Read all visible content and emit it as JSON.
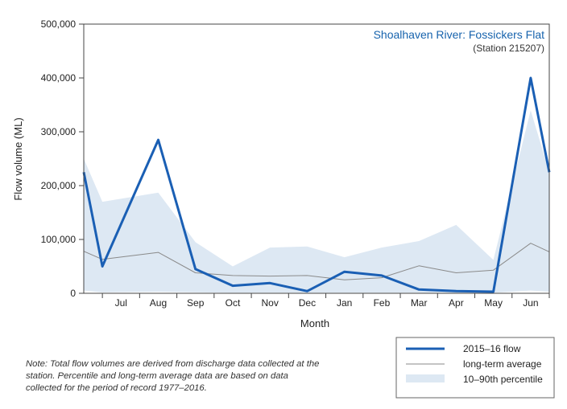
{
  "chart_data": {
    "type": "line",
    "title": "Shoalhaven River: Fossickers Flat",
    "subtitle": "(Station 215207)",
    "xlabel": "Month",
    "ylabel": "Flow volume (ML)",
    "ylim": [
      0,
      500000
    ],
    "yticks": [
      0,
      100000,
      200000,
      300000,
      400000,
      500000
    ],
    "ytick_labels": [
      "0",
      "100,000",
      "200,000",
      "300,000",
      "400,000",
      "500,000"
    ],
    "categories": [
      "Jul",
      "Aug",
      "Sep",
      "Oct",
      "Nov",
      "Dec",
      "Jan",
      "Feb",
      "Mar",
      "Apr",
      "May",
      "Jun"
    ],
    "x": [
      0,
      0.5,
      2,
      3,
      4,
      5,
      6,
      7,
      8,
      9,
      10,
      11,
      12,
      12.5
    ],
    "series": [
      {
        "name": "2015–16 flow",
        "role": "line",
        "color": "#1a5fb4",
        "values": [
          225000,
          50000,
          285000,
          45000,
          14000,
          19000,
          4000,
          40000,
          33000,
          7000,
          4000,
          3000,
          400000,
          225000
        ]
      },
      {
        "name": "long-term average",
        "role": "line",
        "color": "#8a8a8a",
        "values": [
          78000,
          63000,
          76000,
          38000,
          33000,
          32000,
          33000,
          25000,
          29000,
          51000,
          38000,
          43000,
          93000,
          77000
        ]
      },
      {
        "name": "10–90th percentile",
        "role": "band",
        "color": "#dde8f3",
        "upper": [
          250000,
          170000,
          187000,
          95000,
          50000,
          85000,
          87000,
          67000,
          85000,
          97000,
          127000,
          62000,
          340000,
          225000
        ],
        "lower": [
          5000,
          2000,
          3000,
          2000,
          1000,
          1000,
          1000,
          1000,
          1000,
          1000,
          1000,
          1000,
          5000,
          3000
        ]
      }
    ],
    "legend_position": "bottom-right",
    "grid": false
  },
  "note": "Note: Total flow volumes are derived from discharge data collected at the station. Percentile and long-term average data are based on data collected for the period of record 1977–2016."
}
